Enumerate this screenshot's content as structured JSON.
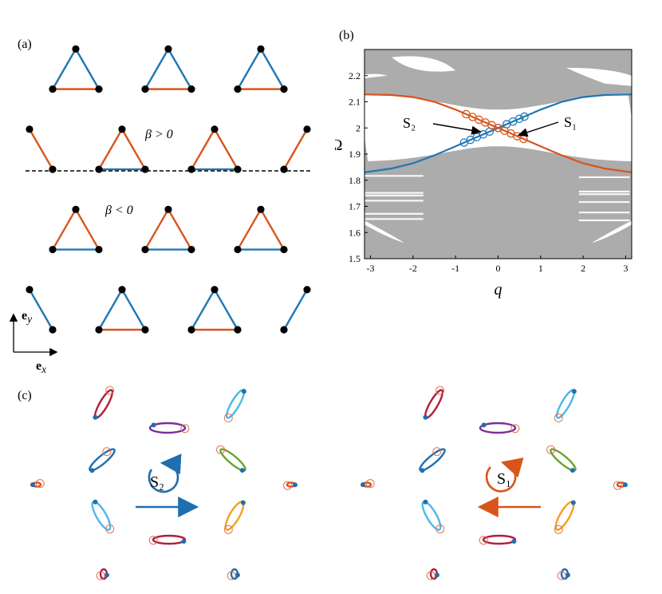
{
  "panels": {
    "a": {
      "label": "(a)",
      "region_top": "β > 0",
      "region_bottom": "β < 0",
      "axis_x": "e",
      "axis_x_sub": "x",
      "axis_y": "e",
      "axis_y_sub": "y",
      "colors": {
        "blue_bond": "#1f77b4",
        "orange_bond": "#d9541a",
        "site": "#000000",
        "interface": "#000000"
      }
    },
    "b": {
      "label": "(b)"
    },
    "c": {
      "label": "(c)",
      "left_mode": "S₂",
      "right_mode": "S₁",
      "left_color": "#1f6fb0",
      "right_color": "#d9541a"
    }
  },
  "chart_data": {
    "type": "line",
    "xlabel": "q",
    "ylabel": "Ω",
    "xlim": [
      -3.14159,
      3.14159
    ],
    "ylim": [
      1.5,
      2.3
    ],
    "xticks": [
      -3,
      -2,
      -1,
      0,
      1,
      2,
      3
    ],
    "yticks": [
      1.5,
      1.6,
      1.7,
      1.8,
      1.9,
      2,
      2.1,
      2.2
    ],
    "grid": false,
    "bulk_color": "#9e9e9e",
    "series": [
      {
        "color": "#1f77b4",
        "x": [
          -3.14,
          -2.5,
          -2,
          -1.5,
          -1,
          -0.5,
          0,
          0.5,
          1,
          1.5,
          2,
          2.5,
          3.14
        ],
        "y": [
          1.83,
          1.845,
          1.865,
          1.895,
          1.93,
          1.965,
          2.0,
          2.035,
          2.07,
          2.1,
          2.118,
          2.126,
          2.128
        ]
      },
      {
        "color": "#d9541a",
        "x": [
          -3.14,
          -2.5,
          -2,
          -1.5,
          -1,
          -0.5,
          0,
          0.5,
          1,
          1.5,
          2,
          2.5,
          3.14
        ],
        "y": [
          2.128,
          2.126,
          2.118,
          2.1,
          2.07,
          2.035,
          2.0,
          1.965,
          1.93,
          1.895,
          1.865,
          1.845,
          1.83
        ]
      }
    ],
    "markers": {
      "S1_blue_q": [
        -0.8,
        -0.65,
        -0.5,
        -0.35,
        -0.2,
        0,
        0.2,
        0.35,
        0.5,
        0.62
      ],
      "S2_orange_q": [
        -0.75,
        -0.6,
        -0.45,
        -0.3,
        -0.15,
        0,
        0.15,
        0.3,
        0.45,
        0.6
      ]
    },
    "annotations": [
      {
        "text": "S₂",
        "target_q": -0.3
      },
      {
        "text": "S₁",
        "target_q": 0.35
      }
    ]
  }
}
